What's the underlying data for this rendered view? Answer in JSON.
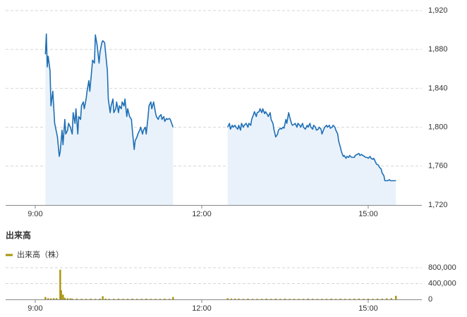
{
  "chart_data": [
    {
      "type": "line",
      "color": "#1f6fb5",
      "fill": "#e9f2fb",
      "grid": true,
      "x": [
        551,
        552,
        553,
        554,
        556,
        557,
        559,
        561,
        564,
        566,
        567,
        569,
        570,
        572,
        573,
        575,
        576,
        578,
        580,
        581,
        583,
        584,
        586,
        587,
        589,
        590,
        592,
        593,
        595,
        596,
        598,
        599,
        601,
        602,
        604,
        605,
        607,
        609,
        610,
        612,
        613,
        615,
        616,
        618,
        619,
        621,
        622,
        624,
        625,
        627,
        628,
        630,
        631,
        633,
        634,
        636,
        637,
        639,
        640,
        642,
        644,
        645,
        647,
        648,
        650,
        651,
        653,
        654,
        656,
        657,
        659,
        660,
        662,
        663,
        665,
        666,
        668,
        670,
        671,
        673,
        674,
        676,
        677,
        679,
        680,
        682,
        683,
        685,
        686,
        689,
        720,
        748,
        750,
        751,
        753,
        754,
        756,
        757,
        759,
        760,
        762,
        763,
        765,
        766,
        768,
        770,
        771,
        773,
        774,
        776,
        777,
        779,
        780,
        782,
        783,
        785,
        786,
        788,
        789,
        791,
        792,
        794,
        795,
        797,
        798,
        800,
        802,
        803,
        805,
        806,
        808,
        809,
        811,
        812,
        814,
        815,
        817,
        818,
        820,
        821,
        823,
        824,
        826,
        827,
        829,
        830,
        832,
        834,
        835,
        837,
        838,
        840,
        841,
        843,
        844,
        846,
        847,
        849,
        850,
        852,
        853,
        855,
        856,
        858,
        859,
        861,
        862,
        864,
        865,
        867,
        868,
        870,
        871,
        873,
        874,
        876,
        877,
        879,
        880,
        882,
        883,
        885,
        886,
        888,
        890,
        891,
        893,
        894,
        896,
        897,
        899,
        900,
        902,
        903,
        905,
        906,
        908,
        909,
        911,
        912,
        914,
        915,
        917,
        918,
        920,
        921,
        923,
        924,
        926,
        927,
        930
      ],
      "values": [
        1875,
        1896,
        1862,
        1873,
        1858,
        1822,
        1837,
        1804,
        1790,
        1770,
        1775,
        1797,
        1782,
        1808,
        1793,
        1797,
        1804,
        1800,
        1793,
        1815,
        1804,
        1819,
        1793,
        1811,
        1808,
        1822,
        1826,
        1819,
        1829,
        1837,
        1848,
        1837,
        1858,
        1869,
        1866,
        1895,
        1884,
        1866,
        1877,
        1887,
        1889,
        1887,
        1877,
        1858,
        1829,
        1815,
        1822,
        1829,
        1815,
        1819,
        1826,
        1815,
        1822,
        1819,
        1826,
        1822,
        1829,
        1811,
        1819,
        1811,
        1808,
        1797,
        1777,
        1786,
        1790,
        1793,
        1797,
        1800,
        1793,
        1797,
        1800,
        1793,
        1811,
        1822,
        1826,
        1819,
        1826,
        1815,
        1811,
        1808,
        1811,
        1813,
        1808,
        1811,
        1806,
        1809,
        1808,
        1809,
        1808,
        1800,
        null,
        1800,
        1804,
        1798,
        1802,
        1800,
        1802,
        1800,
        1798,
        1802,
        1797,
        1804,
        1800,
        1802,
        1804,
        1800,
        1804,
        1802,
        1808,
        1813,
        1816,
        1811,
        1815,
        1816,
        1819,
        1815,
        1819,
        1814,
        1816,
        1813,
        1811,
        1815,
        1808,
        1804,
        1798,
        1790,
        1793,
        1797,
        1799,
        1798,
        1800,
        1799,
        1808,
        1804,
        1815,
        1811,
        1804,
        1802,
        1803,
        1804,
        1800,
        1804,
        1802,
        1800,
        1804,
        1800,
        1798,
        1802,
        1800,
        1804,
        1800,
        1798,
        1802,
        1800,
        1797,
        1798,
        1800,
        1798,
        1793,
        1798,
        1800,
        1802,
        1800,
        1802,
        1799,
        1800,
        1802,
        1800,
        1797,
        1793,
        1786,
        1779,
        1775,
        1770,
        1771,
        1768,
        1770,
        1769,
        1771,
        1769,
        1769,
        1769,
        1771,
        1772,
        1773,
        1771,
        1772,
        1771,
        1770,
        1769,
        1769,
        1768,
        1770,
        1768,
        1767,
        1768,
        1764,
        1762,
        1761,
        1759,
        1757,
        1753,
        1750,
        1745,
        1745,
        1745,
        1746,
        1745,
        1745,
        1745,
        1745
      ],
      "xlim": [
        508,
        958
      ],
      "xticks": [
        {
          "value": 540,
          "label": "9:00"
        },
        {
          "value": 720,
          "label": "12:00"
        },
        {
          "value": 900,
          "label": "15:00"
        }
      ],
      "ylim": [
        1720,
        1920
      ],
      "yticks": [
        {
          "value": 1720,
          "label": "1,720"
        },
        {
          "value": 1760,
          "label": "1,760"
        },
        {
          "value": 1800,
          "label": "1,800"
        },
        {
          "value": 1840,
          "label": "1,840"
        },
        {
          "value": 1880,
          "label": "1,880"
        },
        {
          "value": 1920,
          "label": "1,920"
        }
      ]
    },
    {
      "type": "bar",
      "title": "出来高",
      "grid": true,
      "x": [
        551,
        554,
        557,
        560,
        563,
        567,
        568,
        570,
        572,
        575,
        578,
        580,
        585,
        590,
        595,
        600,
        605,
        610,
        613,
        616,
        620,
        625,
        630,
        635,
        640,
        645,
        650,
        655,
        660,
        665,
        670,
        675,
        680,
        685,
        689,
        748,
        752,
        756,
        760,
        765,
        770,
        775,
        780,
        785,
        790,
        795,
        800,
        805,
        810,
        815,
        820,
        825,
        830,
        835,
        840,
        845,
        850,
        855,
        860,
        865,
        870,
        875,
        880,
        885,
        890,
        895,
        900,
        905,
        910,
        915,
        920,
        925,
        930
      ],
      "series": [
        {
          "name": "出来高（株）",
          "color": "#a8950c",
          "values": [
            60000,
            30000,
            25000,
            30000,
            30000,
            750000,
            230000,
            120000,
            40000,
            30000,
            25000,
            20000,
            20000,
            15000,
            15000,
            20000,
            15000,
            20000,
            80000,
            20000,
            15000,
            15000,
            20000,
            15000,
            15000,
            20000,
            15000,
            15000,
            20000,
            15000,
            15000,
            15000,
            20000,
            15000,
            60000,
            30000,
            20000,
            20000,
            20000,
            15000,
            20000,
            15000,
            15000,
            15000,
            20000,
            15000,
            20000,
            15000,
            20000,
            15000,
            15000,
            15000,
            15000,
            20000,
            15000,
            15000,
            15000,
            15000,
            20000,
            15000,
            20000,
            15000,
            15000,
            20000,
            20000,
            15000,
            20000,
            15000,
            20000,
            20000,
            25000,
            30000,
            90000
          ]
        }
      ],
      "xlim": [
        508,
        958
      ],
      "xticks": [
        {
          "value": 540,
          "label": "9:00"
        },
        {
          "value": 720,
          "label": "12:00"
        },
        {
          "value": 900,
          "label": "15:00"
        }
      ],
      "ylim": [
        0,
        800000
      ],
      "yticks": [
        0,
        {
          "value": 400000,
          "label": "400,000"
        },
        {
          "value": 800000,
          "label": "800,000"
        }
      ]
    }
  ]
}
